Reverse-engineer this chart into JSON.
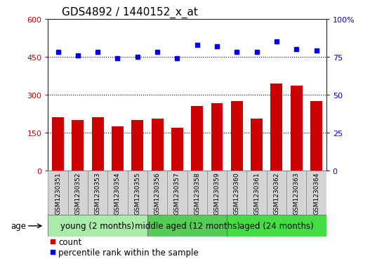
{
  "title": "GDS4892 / 1440152_x_at",
  "samples": [
    "GSM1230351",
    "GSM1230352",
    "GSM1230353",
    "GSM1230354",
    "GSM1230355",
    "GSM1230356",
    "GSM1230357",
    "GSM1230358",
    "GSM1230359",
    "GSM1230360",
    "GSM1230361",
    "GSM1230362",
    "GSM1230363",
    "GSM1230364"
  ],
  "counts": [
    210,
    200,
    210,
    175,
    200,
    205,
    170,
    255,
    265,
    275,
    205,
    345,
    335,
    275
  ],
  "percentiles": [
    78,
    76,
    78,
    74,
    75,
    78,
    74,
    83,
    82,
    78,
    78,
    85,
    80,
    79
  ],
  "groups": [
    {
      "label": "young (2 months)",
      "start": 0,
      "end": 5,
      "color": "#aaeaaa"
    },
    {
      "label": "middle aged (12 months)",
      "start": 5,
      "end": 9,
      "color": "#55cc55"
    },
    {
      "label": "aged (24 months)",
      "start": 9,
      "end": 14,
      "color": "#44dd44"
    }
  ],
  "bar_color": "#cc0000",
  "dot_color": "#0000ee",
  "left_ylim": [
    0,
    600
  ],
  "left_yticks": [
    0,
    150,
    300,
    450,
    600
  ],
  "right_ylim": [
    0,
    100
  ],
  "right_yticks": [
    0,
    25,
    50,
    75,
    100
  ],
  "right_yticklabels": [
    "0",
    "25",
    "50",
    "75",
    "100%"
  ],
  "hlines": [
    150,
    300,
    450
  ],
  "legend_count_label": "count",
  "legend_pct_label": "percentile rank within the sample",
  "age_label": "age",
  "title_fontsize": 11,
  "tick_fontsize": 8,
  "sample_fontsize": 6.5,
  "group_fontsize": 8.5,
  "legend_fontsize": 8.5,
  "label_color": "#c0c0c0"
}
